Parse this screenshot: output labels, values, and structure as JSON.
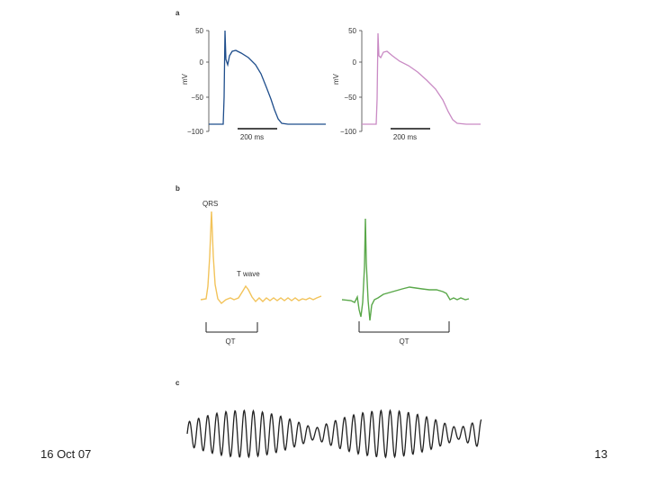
{
  "footer": {
    "date": "16 Oct 07",
    "page_number": "13"
  },
  "figure": {
    "panel_a": {
      "label": "a",
      "y_axis_label": "mV",
      "y_ticks": [
        "50",
        "0",
        "−50",
        "−100"
      ],
      "scale_bar_label": "200 ms",
      "trace_colors": {
        "left": "#1f4e8c",
        "right": "#c98ac4"
      }
    },
    "panel_b": {
      "label": "b",
      "annotations": {
        "qrs": "QRS",
        "t_wave": "T wave"
      },
      "interval_label": "QT",
      "trace_colors": {
        "left": "#f2c35a",
        "right": "#5aa84a"
      }
    },
    "panel_c": {
      "label": "c",
      "trace_color": "#222222"
    }
  }
}
